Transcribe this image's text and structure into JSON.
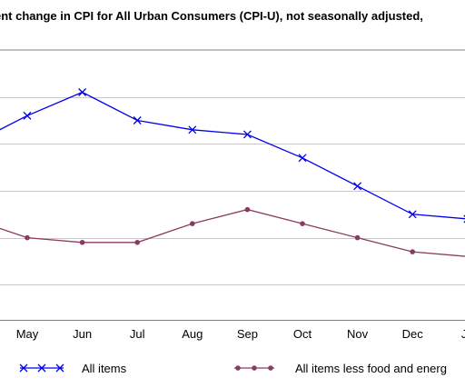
{
  "chart_data": {
    "type": "line",
    "title": "ent change in CPI for All Urban Consumers (CPI-U), not seasonally adjusted,",
    "categories": [
      "May",
      "Jun",
      "Jul",
      "Aug",
      "Sep",
      "Oct",
      "Nov",
      "Dec",
      "Ja"
    ],
    "series": [
      {
        "name": "All items",
        "color": "#0000ee",
        "marker": "x",
        "values": [
          8.6,
          9.1,
          8.5,
          8.3,
          8.2,
          7.7,
          7.1,
          6.5,
          6.4
        ]
      },
      {
        "name": "All items less food and energ",
        "color": "#8b3a62",
        "marker": "dot",
        "values": [
          6.0,
          5.9,
          5.9,
          6.3,
          6.6,
          6.3,
          6.0,
          5.7,
          5.6
        ]
      }
    ],
    "leading_point": {
      "series": 0,
      "value": 8.3
    },
    "leading_point_2": {
      "series": 1,
      "value": 6.2
    },
    "ylim": [
      4.0,
      10.0
    ],
    "grid": true,
    "legend_position": "bottom"
  }
}
